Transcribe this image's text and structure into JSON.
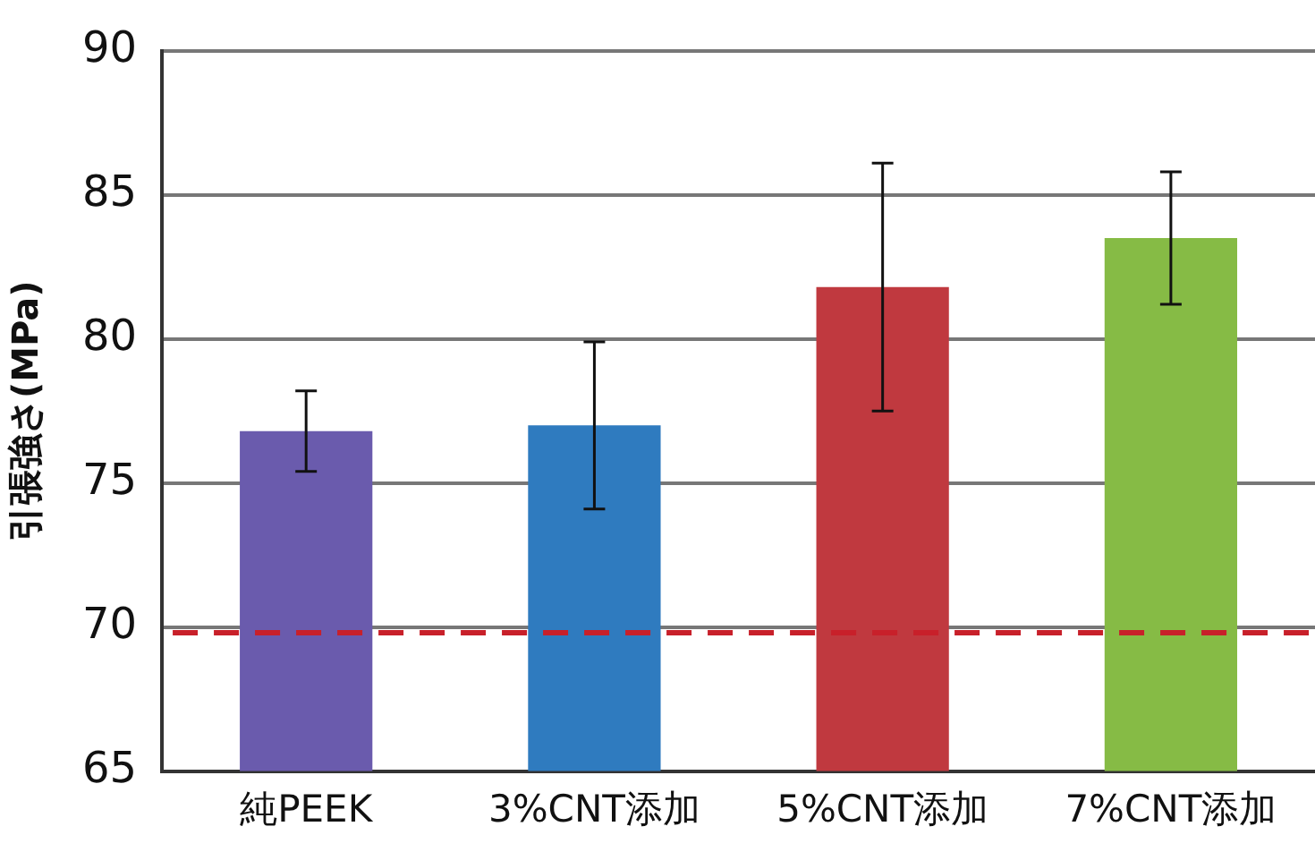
{
  "chart_data": {
    "type": "bar",
    "ylabel": "引張強さ(MPa)",
    "categories": [
      "純PEEK",
      "3%CNT添加",
      "5%CNT添加",
      "7%CNT添加"
    ],
    "values": [
      76.8,
      77.0,
      81.8,
      83.5
    ],
    "colors": [
      "#6a5bad",
      "#2f7bbf",
      "#c0393f",
      "#86bb45"
    ],
    "errors": [
      1.4,
      2.9,
      4.3,
      2.3
    ],
    "ylim": [
      65,
      90
    ],
    "yticks": [
      65,
      70,
      75,
      80,
      85,
      90
    ],
    "grid": "y",
    "legend": false,
    "ref_lines": [
      {
        "axis": "y",
        "value": 69.8,
        "color": "#c8202a",
        "line_style": "dashed"
      }
    ]
  }
}
